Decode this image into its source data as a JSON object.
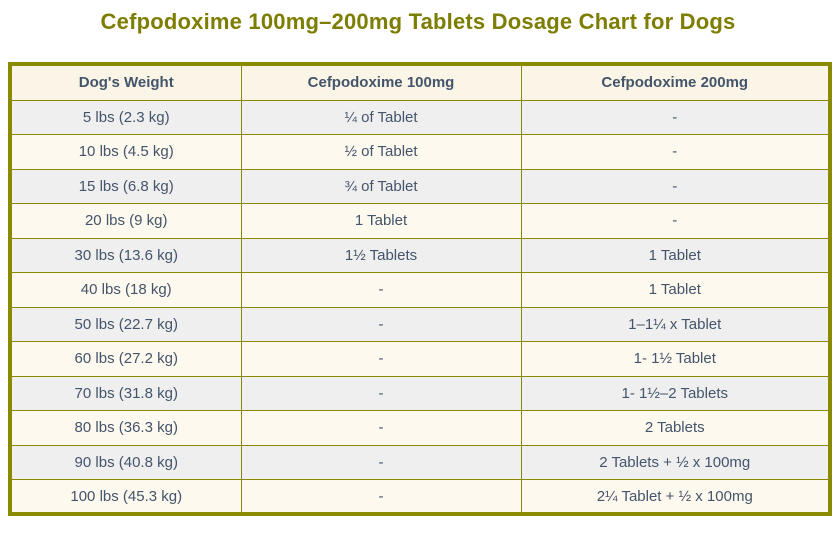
{
  "page": {
    "title": "Cefpodoxime 100mg–200mg Tablets Dosage Chart for Dogs"
  },
  "colors": {
    "title_text": "#7d7d00",
    "table_border": "#8a8a00",
    "header_background": "#faf5e6",
    "row_gray": "#efefef",
    "row_cream": "#fdf9ee",
    "cell_text": "#44546a"
  },
  "chart_data": {
    "type": "table",
    "title": "Cefpodoxime 100mg–200mg Tablets Dosage Chart for Dogs",
    "columns": [
      "Dog's Weight",
      "Cefpodoxime 100mg",
      "Cefpodoxime 200mg"
    ],
    "rows": [
      [
        "5 lbs (2.3 kg)",
        "¼ of Tablet",
        "-"
      ],
      [
        "10 lbs (4.5 kg)",
        "½ of Tablet",
        "-"
      ],
      [
        "15 lbs (6.8 kg)",
        "¾ of Tablet",
        "-"
      ],
      [
        "20 lbs (9 kg)",
        "1 Tablet",
        "-"
      ],
      [
        "30 lbs (13.6 kg)",
        "1½ Tablets",
        "1 Tablet"
      ],
      [
        "40 lbs (18 kg)",
        "-",
        "1 Tablet"
      ],
      [
        "50 lbs (22.7 kg)",
        "-",
        "1–1¼ x Tablet"
      ],
      [
        "60 lbs (27.2 kg)",
        "-",
        "1- 1½ Tablet"
      ],
      [
        "70 lbs (31.8 kg)",
        "-",
        "1- 1½–2  Tablets"
      ],
      [
        "80 lbs (36.3 kg)",
        "-",
        "2 Tablets"
      ],
      [
        "90 lbs (40.8 kg)",
        "-",
        "2 Tablets + ½ x 100mg"
      ],
      [
        "100 lbs (45.3 kg)",
        "-",
        "2¼ Tablet + ½ x 100mg"
      ]
    ]
  }
}
